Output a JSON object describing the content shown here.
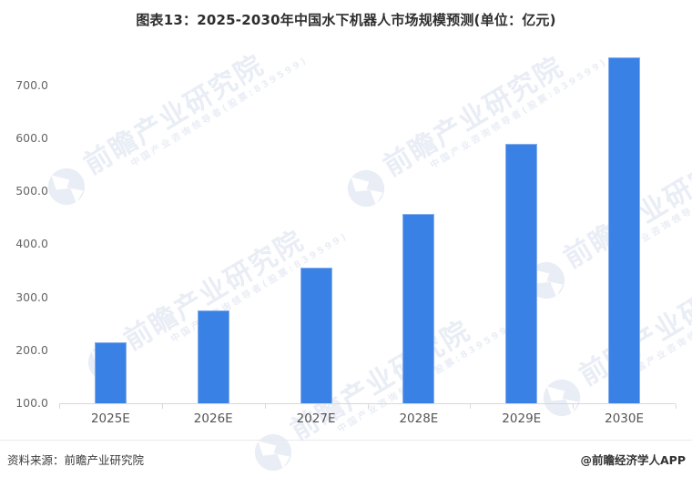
{
  "title": "图表13：2025-2030年中国水下机器人市场规模预测(单位：亿元)",
  "chart_data": {
    "type": "bar",
    "title": "2025-2030年中国水下机器人市场规模预测",
    "unit": "亿元",
    "categories": [
      "2025E",
      "2026E",
      "2027E",
      "2028E",
      "2029E",
      "2030E"
    ],
    "values": [
      215,
      276,
      356,
      457,
      589,
      753
    ],
    "xlabel": "",
    "ylabel": "",
    "ylim": [
      100,
      770
    ],
    "yticks": [
      100,
      200,
      300,
      400,
      500,
      600,
      700
    ],
    "ytick_decimals": 1,
    "grid": false,
    "legend": false,
    "bar_color": "#3981E4",
    "bar_border_color": "#86AEEC",
    "axis_color": "#D8D8D8",
    "tick_label_color": "#666666"
  },
  "watermark": {
    "brand": "前瞻产业研究院",
    "slogan": "中国产业咨询领导者(股票:839599)",
    "color": "#E9EDF5"
  },
  "footer": {
    "source": "资料来源：前瞻产业研究院",
    "credit": "@前瞻经济学人APP"
  }
}
